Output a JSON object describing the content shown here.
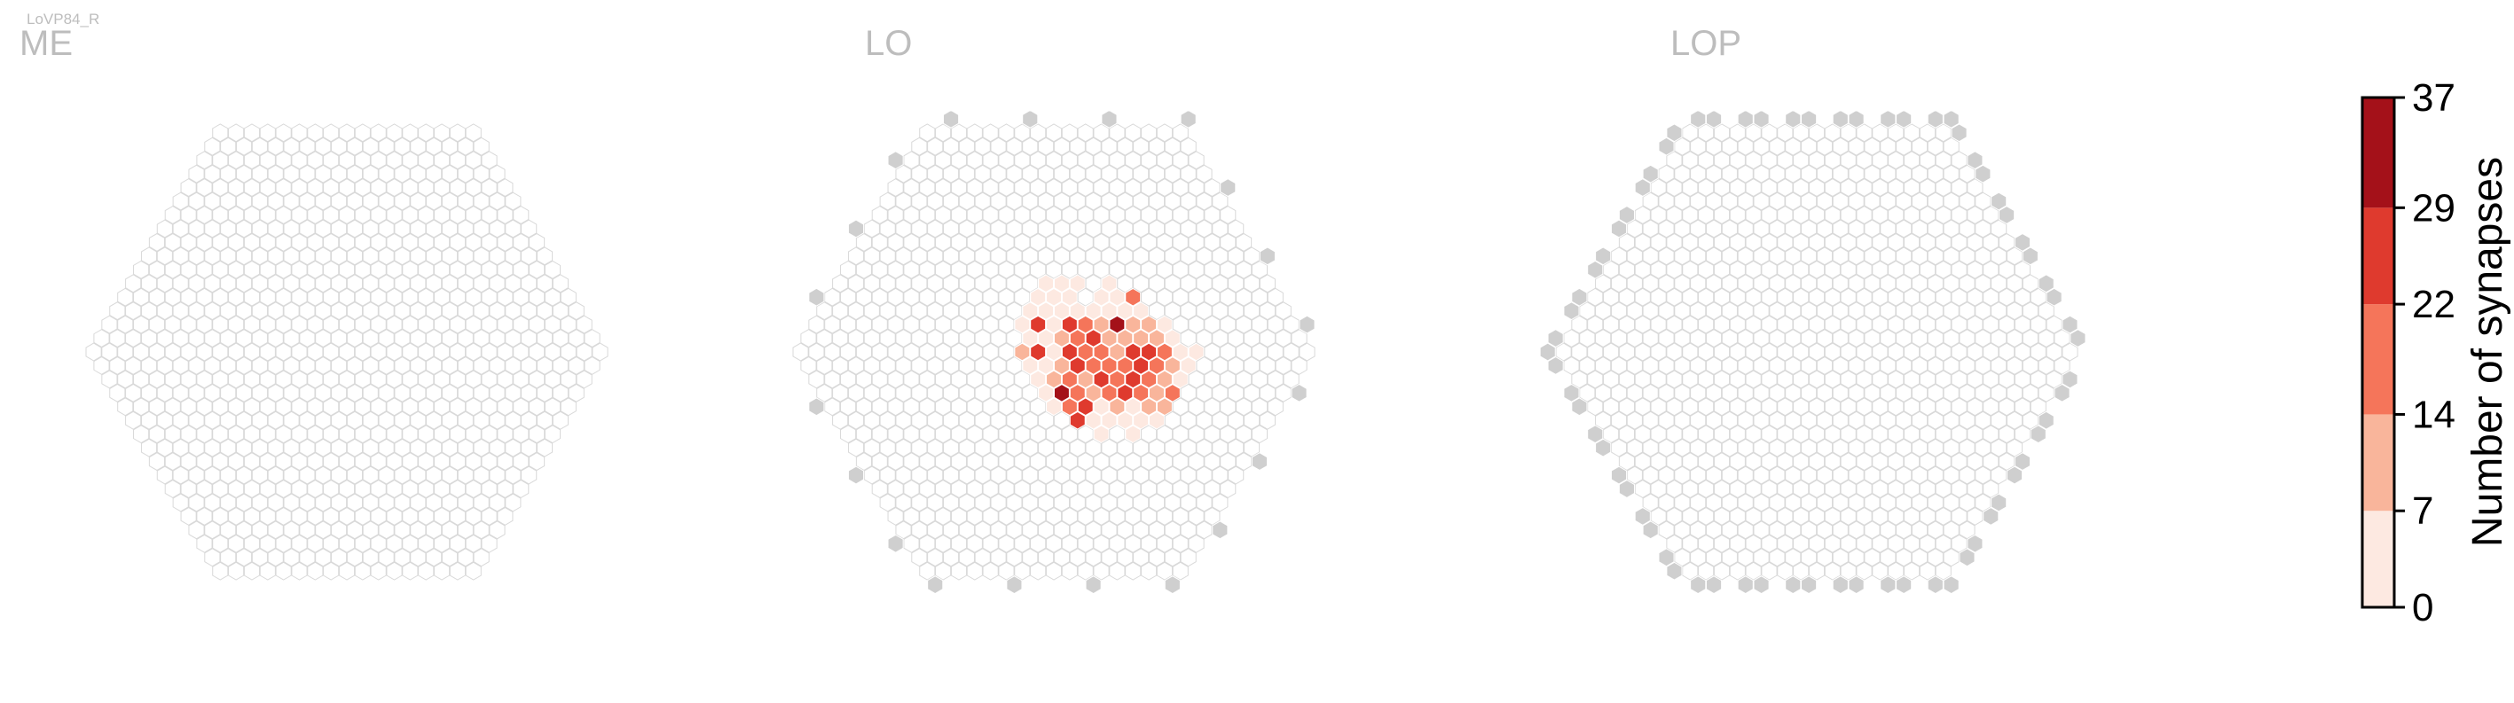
{
  "figure": {
    "cell_type": "LoVP84_R"
  },
  "chart_data": {
    "type": "heatmap",
    "panels": [
      {
        "name": "ME"
      },
      {
        "name": "LO"
      },
      {
        "name": "LOP"
      }
    ],
    "colorbar": {
      "label": "Number of synapses",
      "range": [
        0,
        37
      ],
      "ticks": [
        0,
        7,
        14,
        22,
        29,
        37
      ],
      "bin_colors": [
        "#fde9e1",
        "#f9b59b",
        "#f5755a",
        "#df3a2e",
        "#a41119"
      ]
    },
    "colors": {
      "empty_cell_stroke": "#d9d9d9",
      "outside_column": "#cfcfcf"
    },
    "lo_synapses": [
      {
        "q": 2,
        "r": -5,
        "value": 3
      },
      {
        "q": 3,
        "r": -5,
        "value": 2
      },
      {
        "q": 4,
        "r": -5,
        "value": 4
      },
      {
        "q": 6,
        "r": -5,
        "value": 2
      },
      {
        "q": 1,
        "r": -4,
        "value": 5
      },
      {
        "q": 2,
        "r": -4,
        "value": 3
      },
      {
        "q": 3,
        "r": -4,
        "value": 2
      },
      {
        "q": 5,
        "r": -4,
        "value": 2
      },
      {
        "q": 6,
        "r": -4,
        "value": 3
      },
      {
        "q": 7,
        "r": -4,
        "value": 21
      },
      {
        "q": 0,
        "r": -3,
        "value": 4
      },
      {
        "q": 1,
        "r": -3,
        "value": 2
      },
      {
        "q": 2,
        "r": -3,
        "value": 5
      },
      {
        "q": 3,
        "r": -3,
        "value": 3
      },
      {
        "q": 4,
        "r": -3,
        "value": 6
      },
      {
        "q": 5,
        "r": -3,
        "value": 4
      },
      {
        "q": 6,
        "r": -3,
        "value": 2
      },
      {
        "q": 7,
        "r": -3,
        "value": 3
      },
      {
        "q": -1,
        "r": -2,
        "value": 3
      },
      {
        "q": 0,
        "r": -2,
        "value": 27
      },
      {
        "q": 1,
        "r": -2,
        "value": 5
      },
      {
        "q": 2,
        "r": -2,
        "value": 26
      },
      {
        "q": 3,
        "r": -2,
        "value": 18
      },
      {
        "q": 4,
        "r": -2,
        "value": 12
      },
      {
        "q": 5,
        "r": -2,
        "value": 33
      },
      {
        "q": 6,
        "r": -2,
        "value": 9
      },
      {
        "q": 7,
        "r": -2,
        "value": 10
      },
      {
        "q": 8,
        "r": -2,
        "value": 4
      },
      {
        "q": -1,
        "r": -1,
        "value": 5
      },
      {
        "q": 0,
        "r": -1,
        "value": 4
      },
      {
        "q": 1,
        "r": -1,
        "value": 11
      },
      {
        "q": 2,
        "r": -1,
        "value": 20
      },
      {
        "q": 3,
        "r": -1,
        "value": 23
      },
      {
        "q": 4,
        "r": -1,
        "value": 13
      },
      {
        "q": 5,
        "r": -1,
        "value": 8
      },
      {
        "q": 6,
        "r": -1,
        "value": 14
      },
      {
        "q": 7,
        "r": -1,
        "value": 9
      },
      {
        "q": 8,
        "r": -1,
        "value": 3
      },
      {
        "q": -2,
        "r": 0,
        "value": 12
      },
      {
        "q": -1,
        "r": 0,
        "value": 25
      },
      {
        "q": 0,
        "r": 0,
        "value": 6
      },
      {
        "q": 1,
        "r": 0,
        "value": 28
      },
      {
        "q": 2,
        "r": 0,
        "value": 16
      },
      {
        "q": 3,
        "r": 0,
        "value": 19
      },
      {
        "q": 4,
        "r": 0,
        "value": 11
      },
      {
        "q": 5,
        "r": 0,
        "value": 27
      },
      {
        "q": 6,
        "r": 0,
        "value": 23
      },
      {
        "q": 7,
        "r": 0,
        "value": 16
      },
      {
        "q": 8,
        "r": 0,
        "value": 5
      },
      {
        "q": 9,
        "r": 0,
        "value": 4
      },
      {
        "q": -2,
        "r": 1,
        "value": 2
      },
      {
        "q": -1,
        "r": 1,
        "value": 4
      },
      {
        "q": 0,
        "r": 1,
        "value": 10
      },
      {
        "q": 1,
        "r": 1,
        "value": 24
      },
      {
        "q": 2,
        "r": 1,
        "value": 21
      },
      {
        "q": 3,
        "r": 1,
        "value": 22
      },
      {
        "q": 4,
        "r": 1,
        "value": 17
      },
      {
        "q": 5,
        "r": 1,
        "value": 29
      },
      {
        "q": 6,
        "r": 1,
        "value": 20
      },
      {
        "q": 7,
        "r": 1,
        "value": 12
      },
      {
        "q": 8,
        "r": 1,
        "value": 3
      },
      {
        "q": -2,
        "r": 2,
        "value": 3
      },
      {
        "q": -1,
        "r": 2,
        "value": 9
      },
      {
        "q": 0,
        "r": 2,
        "value": 18
      },
      {
        "q": 1,
        "r": 2,
        "value": 12
      },
      {
        "q": 2,
        "r": 2,
        "value": 23
      },
      {
        "q": 3,
        "r": 2,
        "value": 19
      },
      {
        "q": 4,
        "r": 2,
        "value": 26
      },
      {
        "q": 5,
        "r": 2,
        "value": 18
      },
      {
        "q": 6,
        "r": 2,
        "value": 9
      },
      {
        "q": 7,
        "r": 2,
        "value": 6
      },
      {
        "q": -2,
        "r": 3,
        "value": 5
      },
      {
        "q": -1,
        "r": 3,
        "value": 35
      },
      {
        "q": 0,
        "r": 3,
        "value": 20
      },
      {
        "q": 1,
        "r": 3,
        "value": 8
      },
      {
        "q": 2,
        "r": 3,
        "value": 15
      },
      {
        "q": 3,
        "r": 3,
        "value": 24
      },
      {
        "q": 4,
        "r": 3,
        "value": 16
      },
      {
        "q": 5,
        "r": 3,
        "value": 10
      },
      {
        "q": 6,
        "r": 3,
        "value": 15
      },
      {
        "q": -2,
        "r": 4,
        "value": 3
      },
      {
        "q": -1,
        "r": 4,
        "value": 19
      },
      {
        "q": 0,
        "r": 4,
        "value": 23
      },
      {
        "q": 1,
        "r": 4,
        "value": 5
      },
      {
        "q": 2,
        "r": 4,
        "value": 10
      },
      {
        "q": 3,
        "r": 4,
        "value": 6
      },
      {
        "q": 4,
        "r": 4,
        "value": 9
      },
      {
        "q": 5,
        "r": 4,
        "value": 11
      },
      {
        "q": -1,
        "r": 5,
        "value": 26
      },
      {
        "q": 0,
        "r": 5,
        "value": 4
      },
      {
        "q": 1,
        "r": 5,
        "value": 3
      },
      {
        "q": 2,
        "r": 5,
        "value": 4
      },
      {
        "q": 3,
        "r": 5,
        "value": 5
      },
      {
        "q": 4,
        "r": 5,
        "value": 3
      },
      {
        "q": 0,
        "r": 6,
        "value": 2
      },
      {
        "q": 2,
        "r": 6,
        "value": 2
      }
    ]
  }
}
